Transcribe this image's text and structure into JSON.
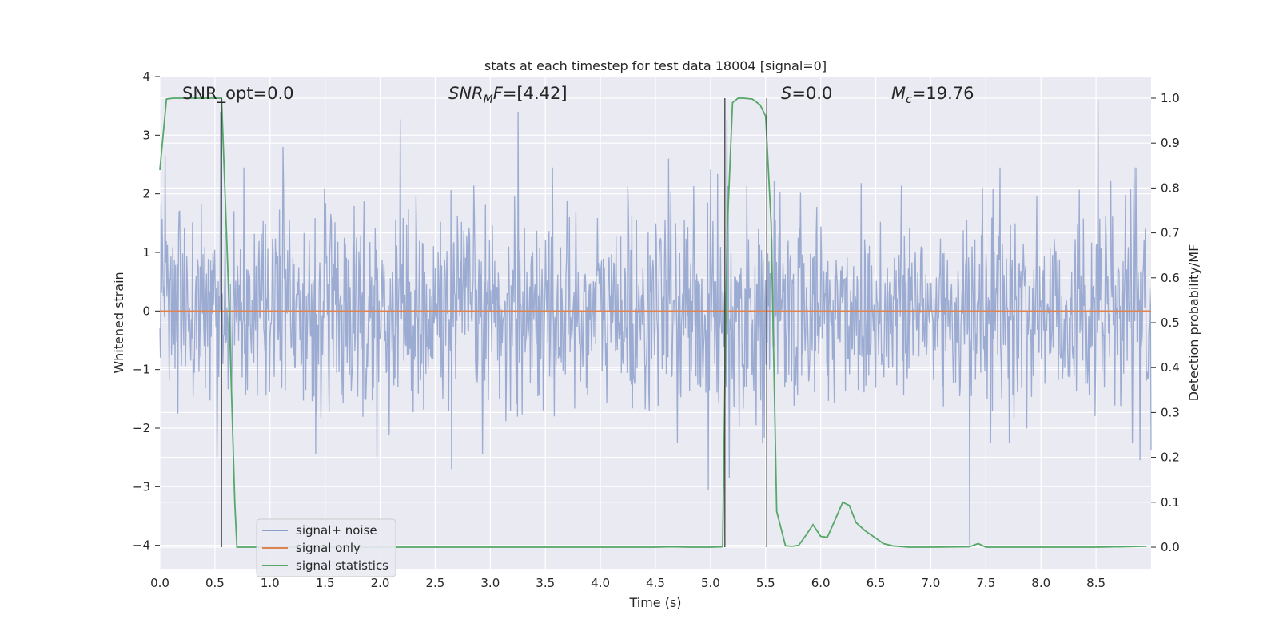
{
  "chart_data": {
    "type": "line",
    "title": "stats at each timestep for test data 18004 [signal=0]",
    "xlabel": "Time (s)",
    "ylabel": "Whitened strain",
    "y2label": "Detection probability/MF",
    "xlim": [
      0,
      9.0
    ],
    "ylim": [
      -4.4,
      4
    ],
    "y2lim": [
      -0.048,
      1.048
    ],
    "grid": true,
    "legend_position": "lower-left",
    "x_ticks": [
      "0.0",
      "0.5",
      "1.0",
      "1.5",
      "2.0",
      "2.5",
      "3.0",
      "3.5",
      "4.0",
      "4.5",
      "5.0",
      "5.5",
      "6.0",
      "6.5",
      "7.0",
      "7.5",
      "8.0",
      "8.5"
    ],
    "y_ticks": [
      "4",
      "3",
      "2",
      "1",
      "0",
      "−1",
      "−2",
      "−3",
      "−4"
    ],
    "y2_ticks": [
      "1.0",
      "0.9",
      "0.8",
      "0.7",
      "0.6",
      "0.5",
      "0.4",
      "0.3",
      "0.2",
      "0.1",
      "0.0"
    ],
    "annotations": {
      "snr_opt": "SNR_opt=0.0",
      "snr_mf": "=[4.42]",
      "s": "=0.0",
      "mc": "=19.76"
    },
    "series": [
      {
        "name": "signal+ noise",
        "color": "#8da0cb",
        "axis": "left",
        "description_type": "noise",
        "peaks": [
          {
            "x": 0.05,
            "y": 2.65
          },
          {
            "x": 0.52,
            "y": -2.5
          },
          {
            "x": 0.55,
            "y": 3.4
          },
          {
            "x": 1.12,
            "y": 2.8
          },
          {
            "x": 1.97,
            "y": -2.5
          },
          {
            "x": 2.18,
            "y": 3.27
          },
          {
            "x": 2.65,
            "y": -2.7
          },
          {
            "x": 3.25,
            "y": 3.4
          },
          {
            "x": 4.62,
            "y": 2.6
          },
          {
            "x": 4.98,
            "y": -3.05
          },
          {
            "x": 5.15,
            "y": 3.27
          },
          {
            "x": 5.17,
            "y": -2.85
          },
          {
            "x": 7.35,
            "y": -4.0
          },
          {
            "x": 8.52,
            "y": 3.6
          },
          {
            "x": 8.9,
            "y": -2.55
          }
        ]
      },
      {
        "name": "signal only",
        "color": "#dd8452",
        "axis": "left",
        "x": [
          0,
          9.0
        ],
        "y": [
          0,
          0
        ]
      },
      {
        "name": "signal statistics",
        "color": "#55a868",
        "axis": "right",
        "x": [
          0.0,
          0.06,
          0.12,
          0.3,
          0.5,
          0.56,
          0.62,
          0.68,
          0.7,
          1.0,
          2.0,
          3.0,
          4.0,
          4.5,
          4.65,
          4.8,
          5.0,
          5.11,
          5.15,
          5.2,
          5.25,
          5.3,
          5.38,
          5.45,
          5.5,
          5.55,
          5.6,
          5.68,
          5.74,
          5.8,
          5.87,
          5.93,
          6.0,
          6.06,
          6.12,
          6.2,
          6.26,
          6.32,
          6.4,
          6.5,
          6.57,
          6.65,
          6.8,
          7.0,
          7.35,
          7.43,
          7.5,
          8.0,
          8.5,
          8.96
        ],
        "y": [
          0.84,
          0.998,
          1.0,
          1.0,
          1.0,
          1.0,
          0.6,
          0.1,
          0.0,
          0.0,
          0.0,
          0.0,
          0.0,
          0.0,
          0.001,
          0.0,
          0.0,
          0.001,
          0.7,
          0.99,
          1.0,
          1.0,
          0.998,
          0.985,
          0.96,
          0.72,
          0.08,
          0.003,
          0.002,
          0.004,
          0.028,
          0.05,
          0.024,
          0.022,
          0.055,
          0.1,
          0.093,
          0.055,
          0.037,
          0.02,
          0.008,
          0.003,
          0.0,
          0.0,
          0.001,
          0.008,
          0.0,
          0.0,
          0.0,
          0.002
        ]
      }
    ],
    "markers": [
      {
        "type": "vline",
        "x": 0.56
      },
      {
        "type": "vline",
        "x": 5.13
      },
      {
        "type": "vline",
        "x": 5.51
      }
    ]
  }
}
